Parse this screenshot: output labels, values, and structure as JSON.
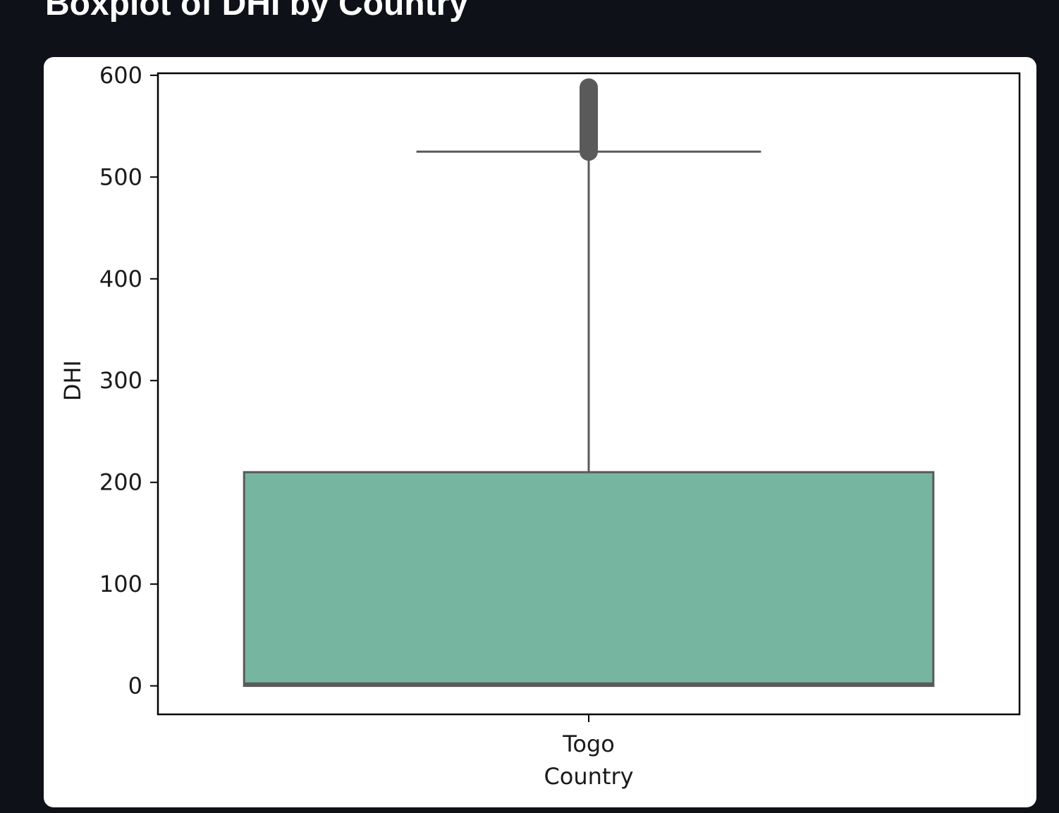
{
  "page": {
    "heading": "Boxplot of DHI by Country"
  },
  "colors": {
    "background": "#0e1118",
    "card": "#ffffff",
    "box_fill": "#76b5a0",
    "box_edge": "#5a5a5a",
    "axes": "#000000"
  },
  "chart_data": {
    "type": "boxplot",
    "title": "",
    "xlabel": "Country",
    "ylabel": "DHI",
    "ylim": [
      -28,
      602
    ],
    "yticks": [
      0,
      100,
      200,
      300,
      400,
      500,
      600
    ],
    "categories": [
      "Togo"
    ],
    "boxes": [
      {
        "category": "Togo",
        "whisker_low": 0,
        "q1": 0,
        "median": 2,
        "q3": 210,
        "whisker_high": 525,
        "outliers_range": [
          525,
          588
        ]
      }
    ],
    "grid": false,
    "legend": "none"
  }
}
